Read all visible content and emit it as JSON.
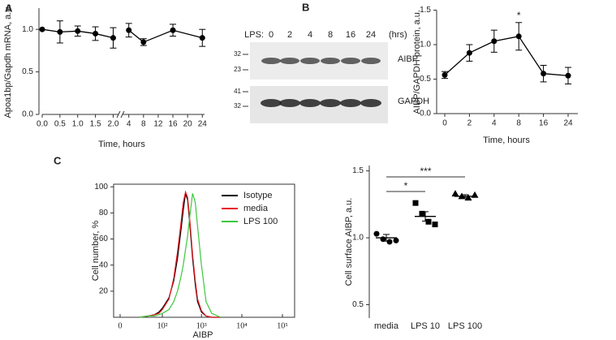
{
  "chart_data": [
    {
      "type": "line",
      "panel": "A",
      "ylabel": "Apoa1bp/Gapdh mRNA, a.u.",
      "xlabel": "Time, hours",
      "color": "#000000",
      "ylim": [
        0,
        1.25
      ],
      "yticks": [
        {
          "value": 0,
          "label": "0.0"
        },
        0.5,
        {
          "value": 1,
          "label": "1.0"
        }
      ],
      "segments": [
        {
          "xlim": [
            0,
            2.15
          ],
          "xticks": [
            {
              "value": 0,
              "label": "0.0"
            },
            0.5,
            {
              "value": 1,
              "label": "1.0"
            },
            1.5,
            {
              "value": 2,
              "label": "2.0"
            }
          ],
          "x": [
            0,
            0.5,
            1,
            1.5,
            2
          ],
          "values": [
            1.0,
            0.97,
            0.98,
            0.95,
            0.9
          ],
          "errors": [
            null,
            0.13,
            0.06,
            0.08,
            0.12
          ]
        },
        {
          "xlim": [
            2.3,
            24.6
          ],
          "xticks": [
            4,
            8,
            12,
            16,
            20,
            24
          ],
          "x": [
            4,
            8,
            16,
            24
          ],
          "values": [
            0.99,
            0.85,
            0.99,
            0.9
          ],
          "errors": [
            0.08,
            0.04,
            0.07,
            0.1
          ]
        }
      ]
    },
    {
      "type": "line",
      "ylabel": "AIBP/GAPDH protein, a.u.",
      "xlabel": "Time, hours",
      "color": "#000000",
      "categories": [
        "0",
        "2",
        "4",
        "8",
        "16",
        "24"
      ],
      "values": [
        0.56,
        0.88,
        1.05,
        1.12,
        0.58,
        0.55
      ],
      "errors": [
        0.05,
        0.12,
        0.16,
        0.2,
        0.12,
        0.12
      ],
      "ylim": [
        0,
        1.5
      ],
      "yticks": [
        {
          "value": 0,
          "label": "0.0"
        },
        0.5,
        {
          "value": 1,
          "label": "1.0"
        },
        1.5
      ],
      "annotations": [
        {
          "label": "*",
          "category": "8"
        }
      ]
    },
    {
      "type": "line",
      "panel": "C",
      "ylabel": "Cell number, %",
      "xlabel": "AIBP",
      "xscale": "symlog",
      "legend": "upper right",
      "xlim": [
        0,
        200000
      ],
      "xticks": [
        0,
        {
          "value": 100,
          "label": "10²"
        },
        {
          "value": 1000,
          "label": "10³"
        },
        {
          "value": 10000,
          "label": "10⁴"
        },
        {
          "value": 100000,
          "label": "10⁵"
        }
      ],
      "ylim": [
        0,
        102
      ],
      "yticks": [
        20,
        40,
        60,
        80,
        100
      ],
      "x": [
        20,
        40,
        60,
        80,
        100,
        150,
        200,
        250,
        300,
        350,
        400,
        450,
        500,
        600,
        700,
        800,
        1000,
        1300,
        1800,
        3000
      ],
      "series": [
        {
          "name": "Isotype",
          "color": "#000000",
          "values": [
            0,
            1,
            2,
            4,
            7,
            15,
            28,
            45,
            65,
            82,
            95,
            90,
            75,
            45,
            25,
            12,
            4,
            1,
            0,
            0
          ]
        },
        {
          "name": "media",
          "color": "#e8141c",
          "values": [
            0,
            1,
            2,
            3,
            6,
            14,
            30,
            50,
            70,
            88,
            96,
            92,
            78,
            48,
            28,
            14,
            5,
            1,
            0,
            0
          ]
        },
        {
          "name": "LPS 100",
          "color": "#3cc83c",
          "values": [
            0,
            1,
            1,
            2,
            3,
            6,
            12,
            20,
            30,
            40,
            52,
            62,
            75,
            95,
            88,
            70,
            40,
            12,
            3,
            0
          ]
        }
      ]
    },
    {
      "type": "dot",
      "ylabel": "Cell surface AIBP, a.u.",
      "color": "#000000",
      "categories": [
        "media",
        "LPS 10",
        "LPS 100"
      ],
      "markers": [
        "circle",
        "square",
        "triangle"
      ],
      "points": [
        [
          1.03,
          0.99,
          0.97,
          0.98
        ],
        [
          1.26,
          1.18,
          1.12,
          1.1
        ],
        [
          1.33,
          1.31,
          1.3,
          1.32
        ]
      ],
      "means": [
        1.0,
        1.16,
        1.31
      ],
      "errors": [
        0.025,
        0.035,
        0.012
      ],
      "ylim": [
        0.4,
        1.54
      ],
      "yticks": [
        0.5,
        {
          "value": 1,
          "label": "1.0"
        },
        1.5
      ],
      "brackets": [
        {
          "label": "*",
          "categories": [
            "media",
            "LPS 10"
          ]
        },
        {
          "label": "***",
          "categories": [
            "media",
            "LPS 100"
          ]
        }
      ]
    }
  ],
  "blot": {
    "panel": "B",
    "lps_label": "LPS:",
    "lanes": [
      "0",
      "2",
      "4",
      "8",
      "16",
      "24"
    ],
    "unit": "(hrs)",
    "panels": [
      {
        "protein": "AIBP",
        "markers": [
          32,
          23
        ]
      },
      {
        "protein": "GAPDH",
        "markers": [
          41,
          32
        ]
      }
    ]
  }
}
